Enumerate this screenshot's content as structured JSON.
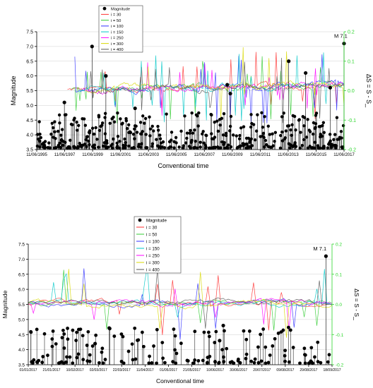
{
  "chart_data": [
    {
      "type": "scatter",
      "ylabel": "Magnitude",
      "y2label": "ΔS = S - S_",
      "xlabel": "Conventional time",
      "ylim": [
        3.5,
        7.5
      ],
      "y2lim": [
        -0.2,
        0.2
      ],
      "yticks": [
        "3.5",
        "4.0",
        "4.5",
        "5.0",
        "5.5",
        "6.0",
        "6.5",
        "7.0",
        "7.5"
      ],
      "y2ticks": [
        "-0.2",
        "-0.1",
        "0.0",
        "0.1",
        "0.2"
      ],
      "xticks": [
        "11/06/1995",
        "11/06/1997",
        "11/06/1999",
        "11/06/2001",
        "11/06/2003",
        "11/06/2005",
        "11/06/2007",
        "11/06/2009",
        "11/06/2011",
        "11/06/2013",
        "11/06/2015",
        "11/06/2017"
      ],
      "annotation": "M 7.1",
      "legend_position": "top-left",
      "legend": [
        "Magnitude",
        "i = 30",
        "i = 50",
        "i = 100",
        "i = 150",
        "i = 250",
        "i = 300",
        "i = 400"
      ],
      "series_colors": [
        "#ff3030",
        "#33cc33",
        "#3030ff",
        "#00c8c8",
        "#ff00ff",
        "#d8d800",
        "#555555"
      ],
      "magnitude_notable": [
        {
          "t": 0.09,
          "m": 5.1
        },
        {
          "t": 0.18,
          "m": 7.0
        },
        {
          "t": 0.225,
          "m": 6.0
        },
        {
          "t": 0.32,
          "m": 4.9
        },
        {
          "t": 0.62,
          "m": 5.7
        },
        {
          "t": 0.63,
          "m": 5.4
        },
        {
          "t": 0.82,
          "m": 6.5
        },
        {
          "t": 0.875,
          "m": 6.1
        },
        {
          "t": 0.955,
          "m": 5.6
        },
        {
          "t": 1.0,
          "m": 7.1
        }
      ]
    },
    {
      "type": "scatter",
      "ylabel": "Magnitude",
      "y2label": "ΔS = S - S_",
      "xlabel": "Conventional time",
      "ylim": [
        3.5,
        7.5
      ],
      "y2lim": [
        -0.2,
        0.2
      ],
      "yticks": [
        "3.5",
        "4.0",
        "4.5",
        "5.0",
        "5.5",
        "6.0",
        "6.5",
        "7.0",
        "7.5"
      ],
      "y2ticks": [
        "-0.2",
        "-0.1",
        "0.0",
        "0.1",
        "0.2"
      ],
      "xticks": [
        "01/01/2017",
        "21/01/2017",
        "10/02/2017",
        "02/03/2017",
        "22/03/2017",
        "11/04/2017",
        "01/05/2017",
        "21/05/2017",
        "10/06/2017",
        "30/06/2017",
        "20/07/2017",
        "09/08/2017",
        "29/08/2017",
        "18/09/2017"
      ],
      "annotation": "M 7.1",
      "legend_position": "top-center",
      "legend": [
        "Magnitude",
        "i = 30",
        "i = 50",
        "i = 100",
        "i = 150",
        "i = 250",
        "i = 300",
        "i = 400"
      ],
      "series_colors": [
        "#ff3030",
        "#33cc33",
        "#3030ff",
        "#00c8c8",
        "#ff00ff",
        "#d8d800",
        "#555555"
      ],
      "magnitude_notable": [
        {
          "t": 0.22,
          "m": 4.2
        },
        {
          "t": 0.268,
          "m": 4.7
        },
        {
          "t": 0.63,
          "m": 4.3
        },
        {
          "t": 0.642,
          "m": 4.8
        },
        {
          "t": 0.98,
          "m": 7.1
        }
      ]
    }
  ]
}
